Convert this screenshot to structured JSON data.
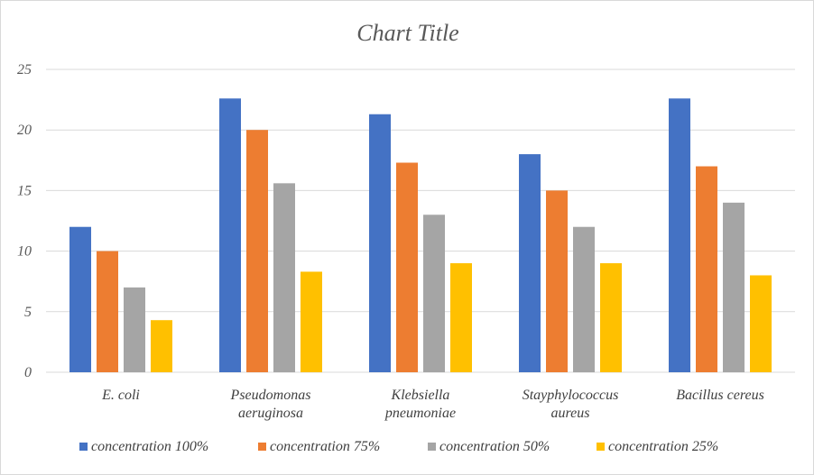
{
  "chart_data": {
    "type": "bar",
    "title": "Chart Title",
    "xlabel": "",
    "ylabel": "",
    "ylim": [
      0,
      25
    ],
    "yticks": [
      0,
      5,
      10,
      15,
      20,
      25
    ],
    "grid": true,
    "legend_position": "bottom",
    "categories": [
      [
        "E. coli"
      ],
      [
        "Pseudomonas",
        "aeruginosa"
      ],
      [
        "Klebsiella",
        "pneumoniae"
      ],
      [
        "Stayphylococcus",
        "aureus"
      ],
      [
        "Bacillus cereus"
      ]
    ],
    "series": [
      {
        "name": "concentration 100%",
        "color": "#4472c4",
        "values": [
          12,
          22.6,
          21.3,
          18,
          22.6
        ]
      },
      {
        "name": "concentration 75%",
        "color": "#ed7d31",
        "values": [
          10,
          20,
          17.3,
          15,
          17
        ]
      },
      {
        "name": "concentration 50%",
        "color": "#a5a5a5",
        "values": [
          7,
          15.6,
          13,
          12,
          14
        ]
      },
      {
        "name": "concentration 25%",
        "color": "#ffc000",
        "values": [
          4.3,
          8.3,
          9,
          9,
          8
        ]
      }
    ]
  }
}
